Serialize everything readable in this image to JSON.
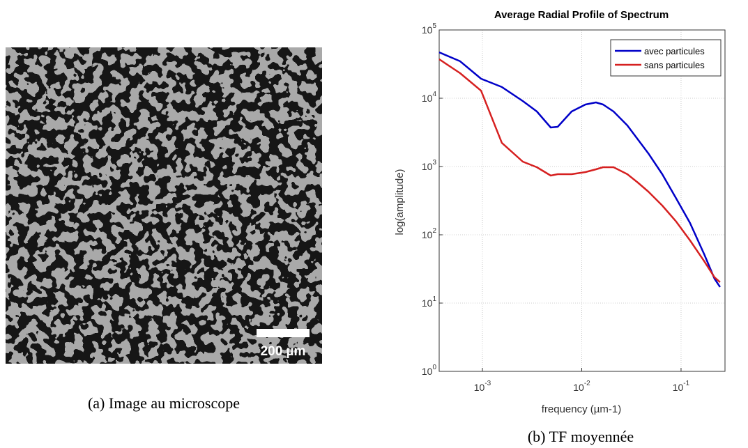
{
  "image_panel": {
    "scale_bar": "200 µm",
    "caption": "(a) Image au microscope"
  },
  "chart_caption": "(b) TF moyennée",
  "chart_data": {
    "type": "line",
    "title": "Average Radial Profile of Spectrum",
    "x_label": "frequency (µm-1)",
    "y_label": "log(amplitude)",
    "x_scale": "log",
    "y_scale": "log",
    "grid": true,
    "legend": "upper right",
    "x": [
      0.000367,
      0.000596,
      0.00097,
      0.00157,
      0.00255,
      0.00353,
      0.00487,
      0.00573,
      0.00791,
      0.0109,
      0.0139,
      0.0164,
      0.0209,
      0.0288,
      0.0367,
      0.0468,
      0.0647,
      0.0893,
      0.123,
      0.171,
      0.217,
      0.247
    ],
    "series": [
      {
        "name": "avec particules",
        "color": "#0000c8",
        "values": [
          47000,
          34800,
          19300,
          14600,
          9100,
          6400,
          3730,
          3820,
          6400,
          8100,
          8690,
          8100,
          6400,
          4000,
          2500,
          1560,
          773,
          340,
          149,
          51.8,
          22.8,
          17.2
        ]
      },
      {
        "name": "sans particules",
        "color": "#d62020",
        "values": [
          37300,
          23300,
          12900,
          2220,
          1180,
          977,
          736,
          773,
          773,
          829,
          910,
          977,
          977,
          773,
          582,
          429,
          268,
          156,
          82.8,
          41,
          23.9,
          20.2
        ]
      }
    ],
    "xlim": [
      0.000367,
      0.277
    ],
    "ylim": [
      1,
      100000
    ],
    "xticks": [
      {
        "value": 0.001,
        "label": "10",
        "exponent": "-3"
      },
      {
        "value": 0.01,
        "label": "10",
        "exponent": "-2"
      },
      {
        "value": 0.1,
        "label": "10",
        "exponent": "-1"
      }
    ],
    "yticks": [
      {
        "value": 1,
        "label": "10",
        "exponent": "0"
      },
      {
        "value": 10,
        "label": "10",
        "exponent": "1"
      },
      {
        "value": 100,
        "label": "10",
        "exponent": "2"
      },
      {
        "value": 1000,
        "label": "10",
        "exponent": "3"
      },
      {
        "value": 10000,
        "label": "10",
        "exponent": "4"
      },
      {
        "value": 100000,
        "label": "10",
        "exponent": "5"
      }
    ]
  }
}
